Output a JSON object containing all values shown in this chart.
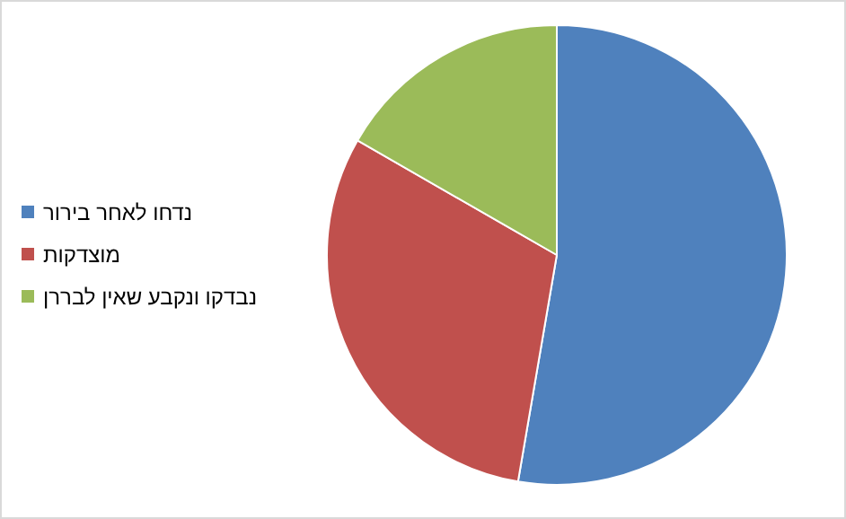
{
  "chart_data": {
    "type": "pie",
    "categories": [
      "נדחו לאחר בירור",
      "מוצדקות",
      "נבדקו ונקבע שאין לבררן"
    ],
    "values": [
      52.7,
      30.6,
      16.7
    ],
    "colors": [
      "#4f81bd",
      "#c0504d",
      "#9bbb59"
    ],
    "legend": "left"
  }
}
